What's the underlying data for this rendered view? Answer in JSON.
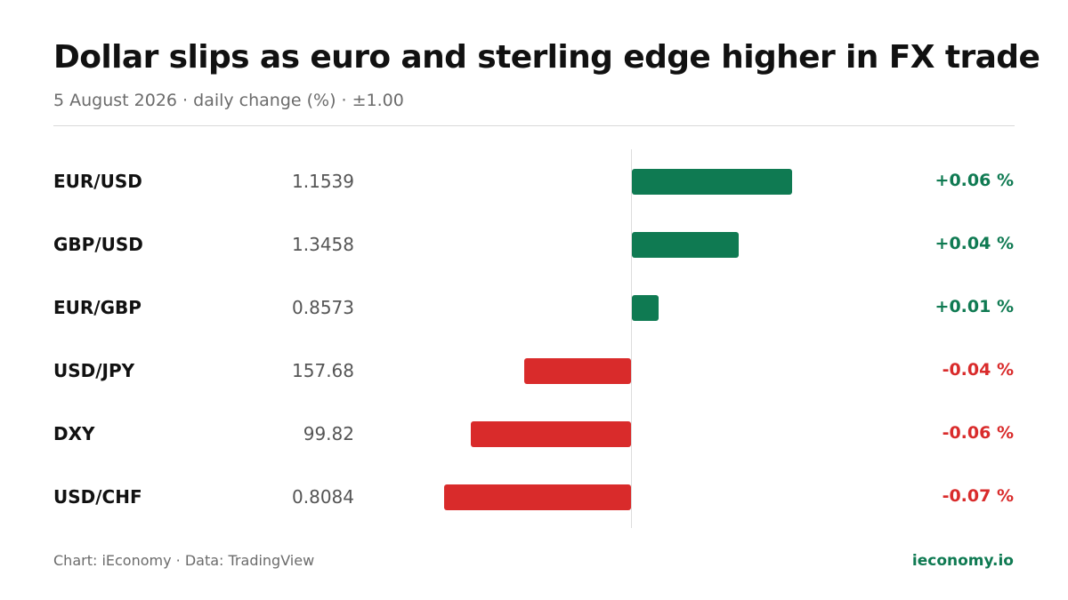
{
  "header": {
    "title": "Dollar slips as euro and sterling edge higher in FX trade",
    "subtitle": "5 August 2026 · daily change (%) · ±1.00"
  },
  "colors": {
    "positive": "#0f7a52",
    "negative": "#d92b2b"
  },
  "chart_data": {
    "type": "bar",
    "orientation": "horizontal",
    "scale_limit": 0.1,
    "grid": false,
    "categories": [
      "EUR/USD",
      "GBP/USD",
      "EUR/GBP",
      "USD/JPY",
      "DXY",
      "USD/CHF"
    ],
    "rates": [
      "1.1539",
      "1.3458",
      "0.8573",
      "157.68",
      "99.82",
      "0.8084"
    ],
    "values": [
      0.06,
      0.04,
      0.01,
      -0.04,
      -0.06,
      -0.07
    ],
    "value_labels": [
      "+0.06 %",
      "+0.04 %",
      "+0.01 %",
      "-0.04 %",
      "-0.06 %",
      "-0.07 %"
    ]
  },
  "footer": {
    "credit": "Chart: iEconomy · Data: TradingView",
    "site": "ieconomy.io"
  }
}
